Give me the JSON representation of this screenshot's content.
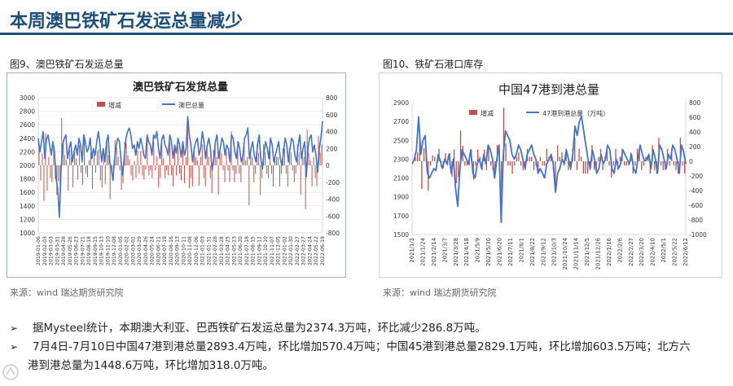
{
  "page": {
    "title": "本周澳巴铁矿石发运总量减少",
    "left_fig_label": "图9、澳巴铁矿石发运总量",
    "right_fig_label": "图10、铁矿石港口库存",
    "left_source": "来源：wind   瑞达期货研究院",
    "right_source": "来源：wind   瑞达期货研究院",
    "bullets": [
      "据Mysteel统计，本期澳大利亚、巴西铁矿石发运总量为2374.3万吨，环比减少286.8万吨。",
      "7月4日-7月10日中国47港到港总量2893.4万吨，环比增加570.4万吨；中国45港到港总量2829.1万吨，环比增加603.5万吨；北方六",
      "港到港总量为1448.6万吨，环比增加318.0万吨。"
    ],
    "bullet_mark": "➢"
  },
  "chart_data": [
    {
      "type": "bar+line",
      "title": "澳巴铁矿石发货总量",
      "legend": [
        "增减",
        "澳巴总量"
      ],
      "legend_position": "top",
      "colors": {
        "bar": "#c0504d",
        "line": "#4472c4"
      },
      "y_left": {
        "min": 1000,
        "max": 3000,
        "step": 200,
        "ticks": [
          "1000",
          "1200",
          "1400",
          "1600",
          "1800",
          "2000",
          "2200",
          "2400",
          "2600",
          "2800",
          "3000"
        ]
      },
      "y_right": {
        "min": -800,
        "max": 800,
        "step": 200,
        "ticks": [
          "-800",
          "-600",
          "-400",
          "-200",
          "0",
          "200",
          "400",
          "600",
          "800"
        ]
      },
      "x_ticks": [
        "2019-01-06",
        "2019-02-03",
        "2019-03-03",
        "2019-03-31",
        "2019-04-28",
        "2019-05-26",
        "2019-06-23",
        "2019-07-21",
        "2019-08-18",
        "2019-09-15",
        "2019-10-13",
        "2019-11-10",
        "2019-12-08",
        "2020-01-05",
        "2020-02-02",
        "2020-03-01",
        "2020-03-29",
        "2020-04-26",
        "2020-05-24",
        "2020-06-21",
        "2020-07-19",
        "2020-08-16",
        "2020-09-13",
        "2020-10-11",
        "2020-11-08",
        "2020-12-06",
        "2021-01-03",
        "2021-01-31",
        "2021-02-28",
        "2021-03-28",
        "2021-04-25",
        "2021-05-23",
        "2021-06-20",
        "2021-07-18",
        "2021-08-15",
        "2021-09-12",
        "2021-10-10",
        "2021-11-07",
        "2021-12-05",
        "2022-01-02",
        "2022-01-30",
        "2022-02-27",
        "2022-03-27",
        "2022-04-24",
        "2022-05-22",
        "2022-06-19"
      ],
      "line_values": [
        2400,
        2200,
        2350,
        2500,
        2100,
        2380,
        2450,
        2300,
        2150,
        2350,
        2200,
        1800,
        1650,
        1230,
        1900,
        2300,
        2400,
        2450,
        2100,
        2250,
        2350,
        2050,
        2200,
        2300,
        2150,
        2400,
        2300,
        2050,
        2450,
        2350,
        2200,
        2250,
        2400,
        2100,
        2250,
        2150,
        2350,
        2500,
        2300,
        2050,
        2250,
        2050,
        2350,
        2450,
        2050,
        1950,
        1780,
        2100,
        2300,
        2400,
        2350,
        2050,
        1850,
        2150,
        2400,
        2500,
        2550,
        2450,
        2250,
        2300,
        2150,
        2350,
        2250,
        2400,
        2300,
        2150,
        2100,
        2450,
        2350,
        2300,
        2150,
        2450,
        2400,
        2500,
        2250,
        2100,
        2380,
        2450,
        2300,
        2250,
        2150,
        2450,
        2350,
        2100,
        2300,
        2180,
        2400,
        2300,
        2120,
        2350,
        2150,
        2250,
        2720,
        2450,
        2300,
        2050,
        2250,
        2350,
        2400,
        2150,
        2250,
        2500,
        2350,
        2100,
        2300,
        2400,
        2250,
        1920,
        2100,
        2350,
        2450,
        2100,
        2250,
        2400,
        2350,
        2150,
        2300,
        2250,
        2050,
        2450,
        2400,
        2200,
        2100,
        2350,
        2250,
        2050,
        2150,
        2400,
        2450,
        2550,
        2100,
        2250,
        2350,
        2150,
        2050,
        2300,
        2450,
        2100,
        1950,
        2200,
        2350,
        2250,
        2100,
        2400,
        2300,
        2050,
        2150,
        2250,
        2350,
        2100,
        2000,
        2200,
        2400,
        2300,
        2050,
        2250,
        2400,
        2350,
        2150,
        2050,
        2300,
        2450,
        2100,
        2250,
        2350,
        1830,
        2250,
        2400,
        2450,
        2200,
        2300,
        2150,
        1900,
        2250,
        2400,
        2650
      ],
      "bar_values": [
        220,
        -180,
        140,
        -420,
        380,
        -300,
        100,
        -150,
        -200,
        230,
        -160,
        -350,
        -190,
        -420,
        560,
        300,
        120,
        60,
        -300,
        180,
        100,
        -260,
        150,
        80,
        -170,
        240,
        -90,
        -230,
        360,
        -100,
        -140,
        60,
        150,
        -280,
        130,
        -90,
        170,
        190,
        -180,
        -260,
        190,
        -220,
        280,
        120,
        -400,
        -100,
        -180,
        300,
        210,
        100,
        -60,
        -290,
        -210,
        280,
        260,
        120,
        70,
        -120,
        -180,
        50,
        -150,
        180,
        -100,
        170,
        -120,
        -170,
        -50,
        330,
        -120,
        -60,
        -150,
        280,
        -60,
        110,
        -260,
        -150,
        270,
        80,
        -150,
        -60,
        -120,
        280,
        -120,
        -250,
        200,
        -120,
        230,
        -100,
        -180,
        240,
        -210,
        100,
        460,
        -270,
        -150,
        -250,
        200,
        100,
        60,
        -240,
        100,
        250,
        -150,
        -250,
        200,
        100,
        -150,
        -330,
        180,
        250,
        100,
        -350,
        150,
        150,
        -60,
        -200,
        150,
        -60,
        -200,
        400,
        -60,
        -200,
        -100,
        250,
        -100,
        -200,
        100,
        250,
        60,
        100,
        -470,
        150,
        100,
        -200,
        -100,
        250,
        150,
        -350,
        -150,
        250,
        150,
        -100,
        -150,
        300,
        -100,
        -250,
        100,
        100,
        100,
        -250,
        -100,
        200,
        200,
        -100,
        -250,
        200,
        150,
        -60,
        -200,
        -100,
        250,
        150,
        -350,
        150,
        100,
        -520,
        420,
        150,
        60,
        -250,
        100,
        -150,
        -250,
        350,
        150,
        250
      ]
    },
    {
      "type": "bar+line",
      "title": "中国47港到港总量",
      "legend": [
        "增减",
        "47港到港总量（万吨）"
      ],
      "legend_position": "top",
      "colors": {
        "bar": "#c0504d",
        "line": "#4472c4"
      },
      "y_left": {
        "min": 1500,
        "max": 2900,
        "step": 200,
        "ticks": [
          "1500",
          "1700",
          "1900",
          "2100",
          "2300",
          "2500",
          "2700",
          "2900"
        ]
      },
      "y_right": {
        "min": -1000,
        "max": 800,
        "step": 200,
        "ticks": [
          "-1000",
          "-800",
          "-600",
          "-400",
          "-200",
          "0",
          "200",
          "400",
          "600",
          "800"
        ]
      },
      "x_ticks": [
        "2021/1/3",
        "2021/1/24",
        "2021/2/14",
        "2021/3/7",
        "2021/3/28",
        "2021/4/18",
        "2021/5/9",
        "2021/5/30",
        "2021/6/20",
        "2021/7/11",
        "2021/8/1",
        "2021/8/22",
        "2021/9/12",
        "2021/10/3",
        "2021/10/24",
        "2021/11/14",
        "2021/12/5",
        "2021/12/26",
        "2022/1/16",
        "2022/2/6",
        "2022/2/27",
        "2022/3/20",
        "2022/4/10",
        "2022/5/1",
        "2022/5/22",
        "2022/6/12"
      ],
      "line_values": [
        2250,
        2300,
        2400,
        2750,
        2350,
        2500,
        2550,
        2150,
        2100,
        2150,
        2200,
        2180,
        2350,
        2280,
        2200,
        2300,
        2250,
        2350,
        2150,
        2300,
        2000,
        1800,
        2200,
        2400,
        2350,
        2300,
        2250,
        2400,
        2150,
        2100,
        2250,
        2300,
        2200,
        2350,
        2250,
        2450,
        2400,
        2300,
        2100,
        2300,
        2450,
        1630,
        2350,
        2600,
        2550,
        2500,
        2350,
        2300,
        2350,
        2450,
        2400,
        2300,
        2200,
        2350,
        2400,
        2450,
        2350,
        2300,
        2150,
        2200,
        2150,
        2100,
        2250,
        2300,
        2350,
        2250,
        1950,
        2150,
        2200,
        2300,
        2250,
        2400,
        2300,
        2200,
        2350,
        2650,
        2550,
        2700,
        2750,
        2600,
        2450,
        2300,
        2200,
        2400,
        2300,
        2150,
        2200,
        2350,
        2250,
        2300,
        2450,
        2400,
        2200,
        2150,
        2300,
        2200,
        2250,
        2400,
        2350,
        2300,
        2250,
        2350,
        2200,
        2150,
        2300,
        2450,
        2350,
        2280,
        2300,
        2350,
        2200,
        2400,
        2300,
        2150,
        2450,
        2400,
        2300,
        2200,
        2350,
        2300,
        2450,
        2400,
        2300,
        2150,
        2450,
        2380,
        2250
      ],
      "bar_values": [
        0,
        60,
        120,
        420,
        -380,
        180,
        60,
        -400,
        -60,
        80,
        60,
        -30,
        170,
        -80,
        -90,
        110,
        -60,
        110,
        -210,
        160,
        -300,
        -220,
        420,
        210,
        -60,
        -60,
        -60,
        160,
        -250,
        -60,
        160,
        60,
        -120,
        160,
        -120,
        220,
        -60,
        -120,
        -220,
        220,
        160,
        -830,
        730,
        240,
        -60,
        -60,
        -170,
        -60,
        60,
        120,
        -60,
        -120,
        -120,
        170,
        60,
        60,
        -120,
        -60,
        -170,
        60,
        -60,
        -60,
        170,
        60,
        60,
        -120,
        -320,
        220,
        60,
        120,
        -60,
        170,
        -120,
        -120,
        170,
        320,
        -120,
        170,
        60,
        -170,
        -170,
        -170,
        -120,
        220,
        -120,
        -170,
        60,
        170,
        -120,
        60,
        170,
        -60,
        -220,
        -60,
        170,
        -120,
        60,
        170,
        -60,
        -60,
        -60,
        120,
        -170,
        -60,
        170,
        170,
        -120,
        -60,
        60,
        60,
        -170,
        220,
        -120,
        -170,
        320,
        -60,
        -120,
        -120,
        170,
        -60,
        170,
        -60,
        -120,
        -170,
        320,
        -60,
        -170
      ]
    }
  ]
}
